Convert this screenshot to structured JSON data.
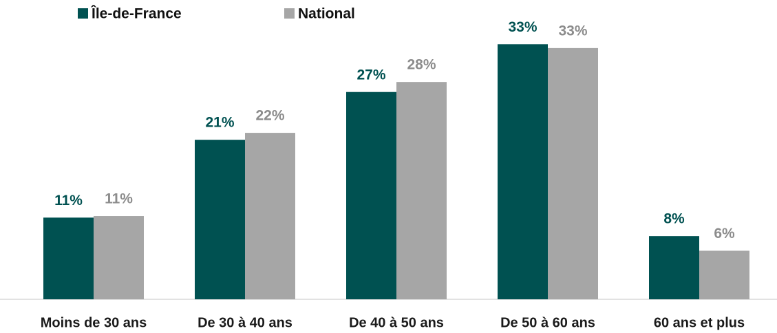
{
  "chart_data": {
    "type": "bar",
    "categories": [
      "Moins de 30 ans",
      "De 30 à 40 ans",
      "De 40 à 50 ans",
      "De 50 à 60 ans",
      "60 ans et plus"
    ],
    "series": [
      {
        "name": "Île-de-France",
        "color": "#005151",
        "values": [
          10.6,
          20.7,
          26.9,
          33.1,
          8.2
        ],
        "value_labels": [
          "11%",
          "21%",
          "27%",
          "33%",
          "8%"
        ]
      },
      {
        "name": "National",
        "color": "#a6a6a6",
        "values": [
          10.8,
          21.6,
          28.2,
          32.6,
          6.3
        ],
        "value_labels": [
          "11%",
          "22%",
          "28%",
          "33%",
          "6%"
        ]
      }
    ],
    "legend": "top-left"
  }
}
